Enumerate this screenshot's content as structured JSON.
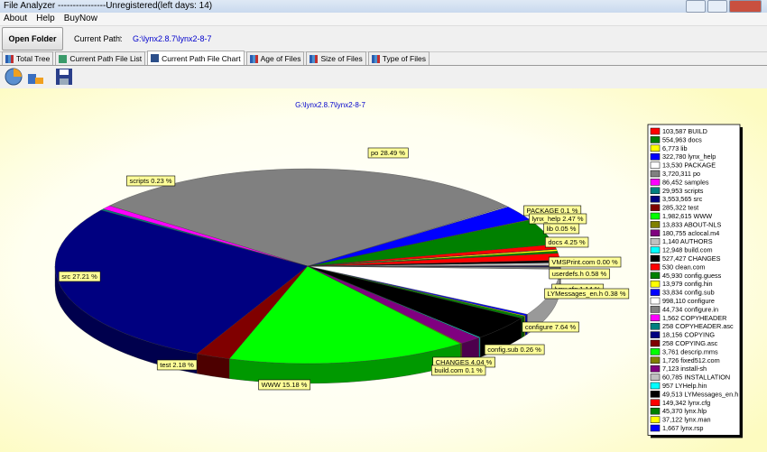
{
  "window": {
    "title": "File Analyzer ----------------Unregistered(left days: 14)"
  },
  "menu": [
    "About",
    "Help",
    "BuyNow"
  ],
  "toolbar": {
    "button": "Open Folder",
    "path_label": "Current Path:",
    "path": "G:\\lynx2.8.7\\lynx2-8-7"
  },
  "tabs": [
    "Total Tree",
    "Current Path File List",
    "Current Path File Chart",
    "Age of Files",
    "Size of Files",
    "Type of Files"
  ],
  "chart_data": {
    "type": "pie",
    "title": "G:\\lynx2.8.7\\lynx2-8-7",
    "categories": [
      "BUILD",
      "docs",
      "lib",
      "lynx_help",
      "PACKAGE",
      "po",
      "samples",
      "scripts",
      "src",
      "test",
      "WWW",
      "ABOUT-NLS",
      "aclocal.m4",
      "AUTHORS",
      "build.com",
      "CHANGES",
      "clean.com",
      "config.guess",
      "config.hin",
      "config.sub",
      "configure",
      "configure.in",
      "COPYHEADER",
      "COPYHEADER.asc",
      "COPYING",
      "COPYING.asc",
      "descrip.mms",
      "fixed512.com",
      "install-sh",
      "INSTALLATION",
      "LYHelp.hin",
      "LYMessages_en.h",
      "lynx.cfg",
      "lynx.hlp",
      "lynx.man",
      "lynx.rsp"
    ],
    "values": [
      103587,
      554963,
      6773,
      322780,
      13530,
      3720311,
      86452,
      29953,
      3553565,
      285322,
      1982615,
      13833,
      180755,
      1140,
      12948,
      527427,
      530,
      45930,
      13979,
      33834,
      998110,
      44734,
      1562,
      258,
      18156,
      258,
      3761,
      1726,
      7123,
      60785,
      957,
      49513,
      149342,
      45370,
      37122,
      1667
    ],
    "value_labels": [
      "103,587",
      "554,963",
      "6,773",
      "322,780",
      "13,530",
      "3,720,311",
      "86,452",
      "29,953",
      "3,553,565",
      "285,322",
      "1,982,615",
      "13,833",
      "180,755",
      "1,140",
      "12,948",
      "527,427",
      "530",
      "45,930",
      "13,979",
      "33,834",
      "998,110",
      "44,734",
      "1,562",
      "258",
      "18,156",
      "258",
      "3,761",
      "1,726",
      "7,123",
      "60,785",
      "957",
      "49,513",
      "149,342",
      "45,370",
      "37,122",
      "1,667"
    ],
    "colors": [
      "#ff0000",
      "#008000",
      "#ffff00",
      "#0000ff",
      "#ffffff",
      "#808080",
      "#ff00ff",
      "#008080",
      "#000080",
      "#800000",
      "#00ff00",
      "#808000",
      "#800080",
      "#c0c0c0",
      "#00ffff",
      "#000000",
      "#ff0000",
      "#008000",
      "#ffff00",
      "#0000ff",
      "#ffffff",
      "#808080",
      "#ff00ff",
      "#008080",
      "#000080",
      "#800000",
      "#00ff00",
      "#808000",
      "#800080",
      "#c0c0c0",
      "#00ffff",
      "#000000",
      "#ff0000",
      "#008000",
      "#ffff00",
      "#0000ff"
    ],
    "annotations": [
      "po 28.49 %",
      "scripts 0.23 %",
      "PACKAGE 0.1 %",
      "lynx_help 2.47 %",
      "lib 0.05 %",
      "docs 4.25 %",
      "VMSPrint.com 0.00 %",
      "userdefs.h 0.58 %",
      "lynx.cfg 1.14 %",
      "LYMessages_en.h 0.38 %",
      "configure 7.64 %",
      "config.sub 0.26 %",
      "CHANGES 4.04 %",
      "build.com 0.1 %",
      "src 27.21 %",
      "test 2.18 %",
      "WWW 15.18 %"
    ]
  }
}
